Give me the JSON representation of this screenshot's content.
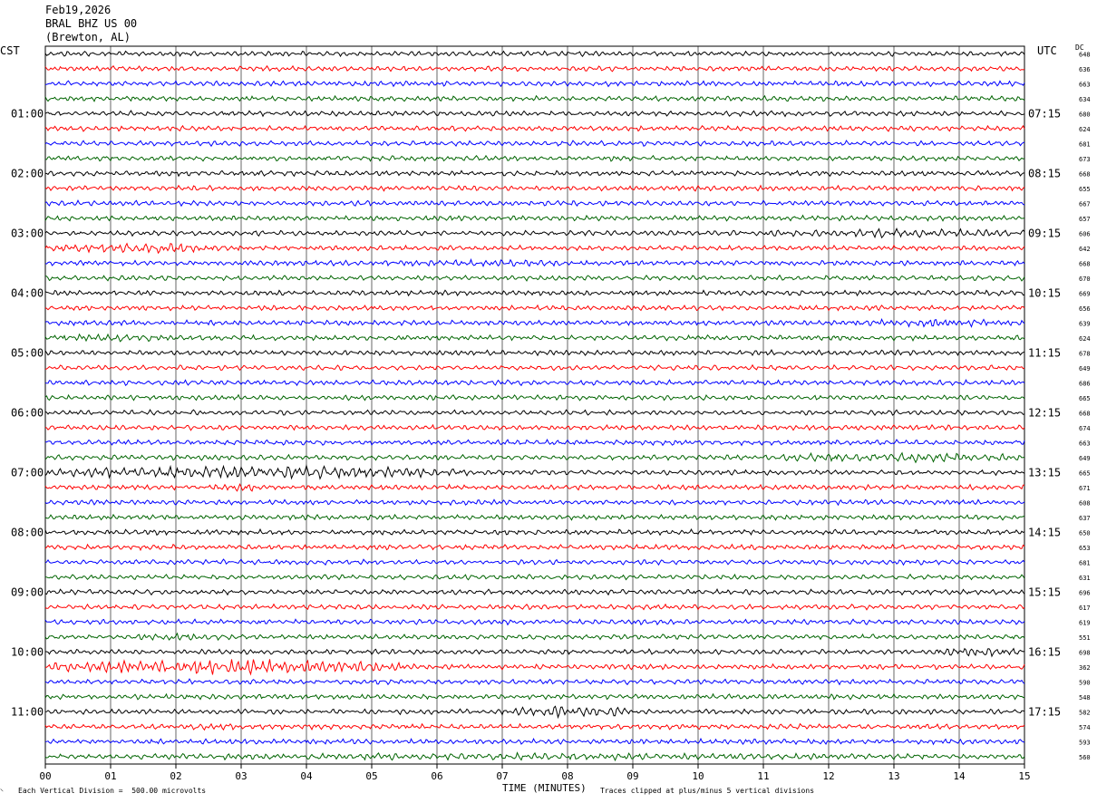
{
  "header": {
    "date": "Feb19,2026",
    "station": "BRAL BHZ US 00",
    "location": "(Brewton, AL)"
  },
  "left_tz": "CST",
  "right_tz": "UTC",
  "dc_label": "DC",
  "footer": {
    "division": "Each Vertical Division =  500.00 microvolts",
    "xlabel": "TIME (MINUTES)",
    "clip_note": "Traces clipped at plus/minus 5 vertical divisions"
  },
  "colors": {
    "traces": [
      "#000000",
      "#ff0000",
      "#0000ff",
      "#006400"
    ],
    "grid": "#000000"
  },
  "chart_data": {
    "type": "line",
    "title": "",
    "xlabel": "TIME (MINUTES)",
    "xlim": [
      0,
      15
    ],
    "x_ticks": [
      "00",
      "01",
      "02",
      "03",
      "04",
      "05",
      "06",
      "07",
      "08",
      "09",
      "10",
      "11",
      "12",
      "13",
      "14",
      "15"
    ],
    "left_hour_labels": [
      "01:00",
      "02:00",
      "03:00",
      "04:00",
      "05:00",
      "06:00",
      "07:00",
      "08:00",
      "09:00",
      "10:00",
      "11:00"
    ],
    "right_hour_labels": [
      "07:15",
      "08:15",
      "09:15",
      "10:15",
      "11:15",
      "12:15",
      "13:15",
      "14:15",
      "15:15",
      "16:15",
      "17:15"
    ],
    "dc_offsets": [
      648,
      636,
      663,
      634,
      680,
      624,
      681,
      673,
      668,
      655,
      667,
      657,
      606,
      642,
      668,
      670,
      669,
      656,
      639,
      624,
      678,
      649,
      686,
      665,
      668,
      674,
      663,
      649,
      665,
      671,
      608,
      637,
      650,
      653,
      681,
      631,
      696,
      617,
      619,
      551,
      698,
      362,
      590,
      548,
      582,
      574,
      593,
      560
    ],
    "trace_count": 48,
    "activity": [
      {
        "trace": 12,
        "start_min": 11.0,
        "end_min": 15.0,
        "level": 1.8
      },
      {
        "trace": 13,
        "start_min": 0.0,
        "end_min": 3.0,
        "level": 2.0
      },
      {
        "trace": 14,
        "start_min": 4.5,
        "end_min": 9.0,
        "level": 1.4
      },
      {
        "trace": 18,
        "start_min": 12.0,
        "end_min": 15.0,
        "level": 1.6
      },
      {
        "trace": 19,
        "start_min": 0.0,
        "end_min": 2.0,
        "level": 1.6
      },
      {
        "trace": 27,
        "start_min": 11.0,
        "end_min": 15.0,
        "level": 2.0
      },
      {
        "trace": 28,
        "start_min": 0.0,
        "end_min": 6.5,
        "level": 2.6
      },
      {
        "trace": 29,
        "start_min": 2.5,
        "end_min": 3.5,
        "level": 1.6
      },
      {
        "trace": 39,
        "start_min": 1.0,
        "end_min": 3.0,
        "level": 1.5
      },
      {
        "trace": 40,
        "start_min": 13.5,
        "end_min": 15.0,
        "level": 1.8
      },
      {
        "trace": 41,
        "start_min": 0.0,
        "end_min": 5.5,
        "level": 3.0
      },
      {
        "trace": 44,
        "start_min": 7.0,
        "end_min": 9.0,
        "level": 2.4
      },
      {
        "trace": 45,
        "start_min": 2.0,
        "end_min": 3.0,
        "level": 1.5
      },
      {
        "trace": 47,
        "start_min": 0.0,
        "end_min": 15.0,
        "level": 1.4
      }
    ]
  }
}
